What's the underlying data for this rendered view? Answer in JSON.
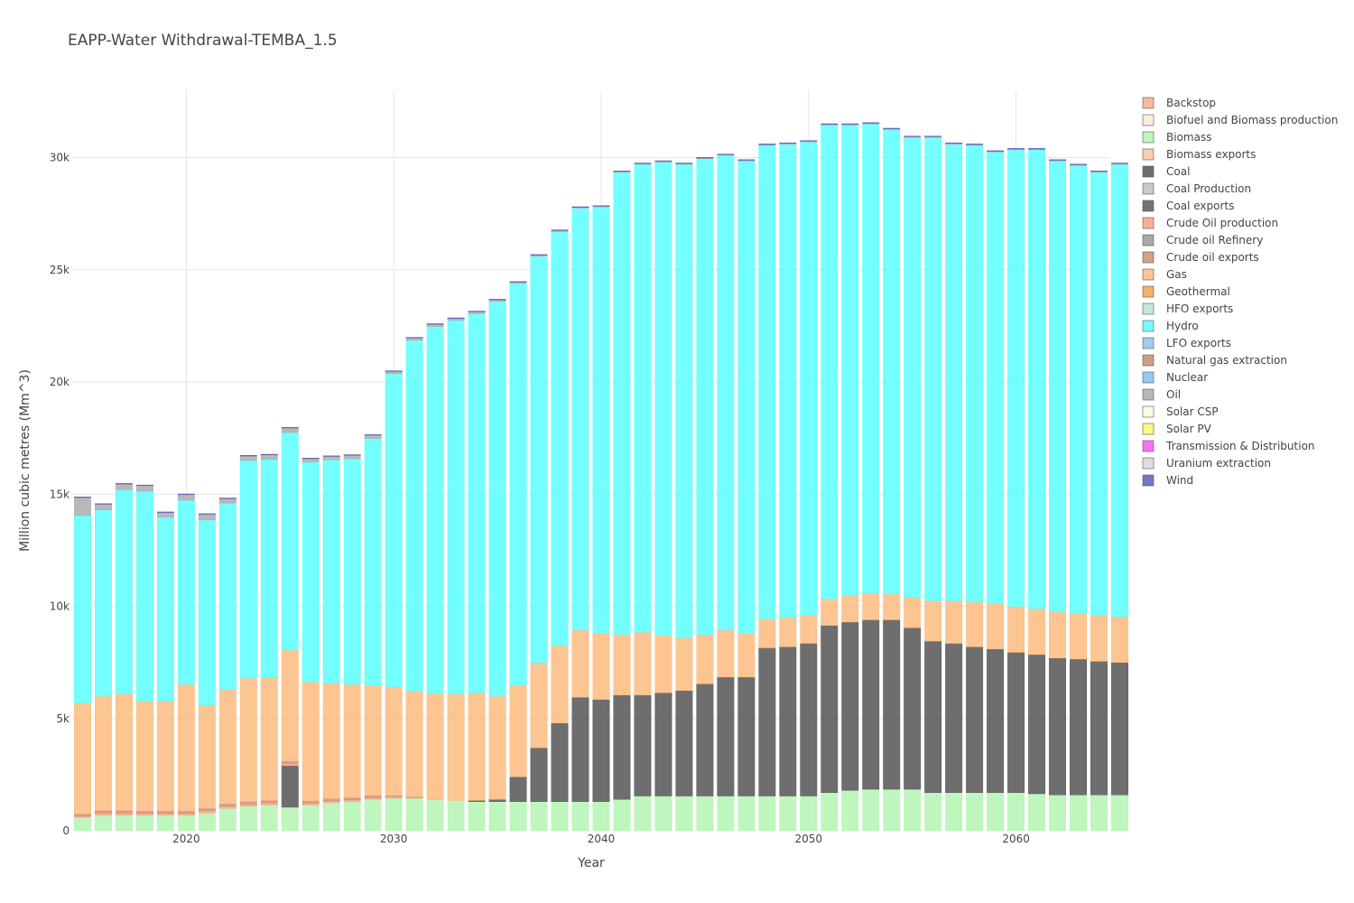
{
  "chart_data": {
    "type": "bar",
    "stacked": true,
    "title": "EAPP-Water Withdrawal-TEMBA_1.5",
    "xlabel": "Year",
    "ylabel": "Million cubic metres (Mm^3)",
    "xlim": [
      2014.5,
      2064.5
    ],
    "ylim": [
      0,
      33000
    ],
    "x_ticks": [
      2020,
      2030,
      2040,
      2050,
      2060
    ],
    "y_ticks": [
      {
        "value": 0,
        "label": "0"
      },
      {
        "value": 5000,
        "label": "5k"
      },
      {
        "value": 10000,
        "label": "10k"
      },
      {
        "value": 15000,
        "label": "15k"
      },
      {
        "value": 20000,
        "label": "20k"
      },
      {
        "value": 25000,
        "label": "25k"
      },
      {
        "value": 30000,
        "label": "30k"
      }
    ],
    "grid": true,
    "legend_position": "right",
    "x": [
      2015,
      2016,
      2017,
      2018,
      2019,
      2020,
      2021,
      2022,
      2023,
      2024,
      2025,
      2026,
      2027,
      2028,
      2029,
      2030,
      2031,
      2032,
      2033,
      2034,
      2035,
      2036,
      2037,
      2038,
      2039,
      2040,
      2041,
      2042,
      2043,
      2044,
      2045,
      2046,
      2047,
      2048,
      2049,
      2050,
      2051,
      2052,
      2053,
      2054,
      2055,
      2056,
      2057,
      2058,
      2059,
      2060,
      2061,
      2062,
      2063,
      2064,
      2065
    ],
    "series": [
      {
        "name": "Backstop",
        "color": "#fdab8a",
        "values": [
          0,
          0,
          0,
          0,
          0,
          0,
          0,
          0,
          0,
          0,
          0,
          0,
          0,
          0,
          0,
          0,
          0,
          0,
          0,
          0,
          0,
          0,
          0,
          0,
          0,
          0,
          0,
          0,
          0,
          0,
          0,
          0,
          0,
          0,
          0,
          0,
          0,
          0,
          0,
          0,
          0,
          0,
          0,
          0,
          0,
          0,
          0,
          0,
          0,
          0,
          0
        ]
      },
      {
        "name": "Biofuel and Biomass production",
        "color": "#ffe9d1",
        "values": [
          0,
          0,
          0,
          0,
          0,
          0,
          0,
          0,
          0,
          0,
          0,
          0,
          0,
          0,
          0,
          0,
          0,
          0,
          0,
          0,
          0,
          0,
          0,
          0,
          0,
          0,
          0,
          0,
          0,
          0,
          0,
          0,
          0,
          0,
          0,
          0,
          0,
          0,
          0,
          0,
          0,
          0,
          0,
          0,
          0,
          0,
          0,
          0,
          0,
          0,
          0
        ]
      },
      {
        "name": "Biomass",
        "color": "#b3f5b1",
        "values": [
          600,
          700,
          700,
          700,
          700,
          700,
          800,
          1000,
          1100,
          1150,
          1050,
          1150,
          1250,
          1300,
          1400,
          1450,
          1450,
          1400,
          1350,
          1300,
          1300,
          1300,
          1300,
          1300,
          1300,
          1300,
          1400,
          1550,
          1550,
          1550,
          1550,
          1550,
          1550,
          1550,
          1550,
          1550,
          1700,
          1800,
          1850,
          1850,
          1850,
          1700,
          1700,
          1700,
          1700,
          1700,
          1650,
          1600,
          1600,
          1600,
          1600
        ]
      },
      {
        "name": "Biomass exports",
        "color": "#fcc4a5",
        "values": [
          0,
          0,
          0,
          0,
          0,
          0,
          0,
          0,
          0,
          0,
          0,
          0,
          0,
          0,
          0,
          0,
          0,
          0,
          0,
          0,
          0,
          0,
          0,
          0,
          0,
          0,
          0,
          0,
          0,
          0,
          0,
          0,
          0,
          0,
          0,
          0,
          0,
          0,
          0,
          0,
          0,
          0,
          0,
          0,
          0,
          0,
          0,
          0,
          0,
          0,
          0
        ]
      },
      {
        "name": "Coal",
        "color": "#555555",
        "values": [
          0,
          0,
          0,
          0,
          0,
          0,
          0,
          0,
          0,
          0,
          1850,
          0,
          0,
          0,
          0,
          0,
          0,
          0,
          0,
          50,
          100,
          1100,
          2400,
          3500,
          4650,
          4550,
          4650,
          4500,
          4600,
          4700,
          5000,
          5300,
          5300,
          6600,
          6650,
          6800,
          7450,
          7500,
          7550,
          7550,
          7200,
          6750,
          6650,
          6500,
          6400,
          6250,
          6200,
          6100,
          6050,
          5950,
          5900
        ]
      },
      {
        "name": "Coal Production",
        "color": "#c1c1c1",
        "values": [
          0,
          0,
          0,
          0,
          0,
          0,
          0,
          0,
          0,
          0,
          0,
          0,
          0,
          0,
          0,
          0,
          0,
          0,
          0,
          0,
          0,
          0,
          0,
          0,
          0,
          0,
          0,
          0,
          0,
          0,
          0,
          0,
          0,
          0,
          0,
          0,
          0,
          0,
          0,
          0,
          0,
          0,
          0,
          0,
          0,
          0,
          0,
          0,
          0,
          0,
          0
        ]
      },
      {
        "name": "Coal exports",
        "color": "#5a5a5a",
        "values": [
          0,
          0,
          0,
          0,
          0,
          0,
          0,
          0,
          0,
          0,
          0,
          0,
          0,
          0,
          0,
          0,
          0,
          0,
          0,
          0,
          0,
          0,
          0,
          0,
          0,
          0,
          0,
          0,
          0,
          0,
          0,
          0,
          0,
          0,
          0,
          0,
          0,
          0,
          0,
          0,
          0,
          0,
          0,
          0,
          0,
          0,
          0,
          0,
          0,
          0,
          0
        ]
      },
      {
        "name": "Crude Oil production",
        "color": "#fba083",
        "values": [
          50,
          100,
          100,
          80,
          80,
          80,
          100,
          100,
          100,
          100,
          100,
          80,
          80,
          80,
          80,
          70,
          30,
          20,
          0,
          0,
          0,
          0,
          0,
          0,
          0,
          0,
          0,
          0,
          0,
          0,
          0,
          0,
          0,
          0,
          0,
          0,
          0,
          0,
          0,
          0,
          0,
          0,
          0,
          0,
          0,
          0,
          0,
          0,
          0,
          0,
          0
        ]
      },
      {
        "name": "Crude oil Refinery",
        "color": "#9a9a9a",
        "values": [
          0,
          0,
          0,
          0,
          0,
          0,
          0,
          0,
          0,
          0,
          0,
          0,
          0,
          0,
          0,
          0,
          0,
          0,
          0,
          0,
          0,
          0,
          0,
          0,
          0,
          0,
          0,
          0,
          0,
          0,
          0,
          0,
          0,
          0,
          0,
          0,
          0,
          0,
          0,
          0,
          0,
          0,
          0,
          0,
          0,
          0,
          0,
          0,
          0,
          0,
          0
        ]
      },
      {
        "name": "Crude oil exports",
        "color": "#c99175",
        "values": [
          100,
          100,
          100,
          100,
          100,
          100,
          100,
          100,
          100,
          100,
          100,
          100,
          100,
          100,
          100,
          50,
          30,
          0,
          0,
          0,
          0,
          0,
          0,
          0,
          0,
          0,
          0,
          0,
          0,
          0,
          0,
          0,
          0,
          0,
          0,
          0,
          0,
          0,
          0,
          0,
          0,
          0,
          0,
          0,
          0,
          0,
          0,
          0,
          0,
          0,
          0
        ]
      },
      {
        "name": "Gas",
        "color": "#fdbb7f",
        "values": [
          4950,
          5100,
          5200,
          4900,
          4900,
          5650,
          4600,
          5100,
          5500,
          5500,
          4950,
          5300,
          5150,
          5050,
          4900,
          4850,
          4700,
          4700,
          4750,
          4800,
          4600,
          4100,
          3800,
          3450,
          3000,
          2950,
          2700,
          2800,
          2550,
          2350,
          2200,
          2100,
          1950,
          1300,
          1300,
          1250,
          1200,
          1200,
          1200,
          1150,
          1350,
          1800,
          1900,
          2000,
          2050,
          2050,
          2050,
          2050,
          2050,
          2050,
          2050
        ]
      },
      {
        "name": "Geothermal",
        "color": "#f5a04e",
        "values": [
          0,
          0,
          0,
          0,
          0,
          0,
          0,
          0,
          0,
          0,
          0,
          0,
          0,
          0,
          0,
          0,
          0,
          0,
          0,
          0,
          0,
          0,
          0,
          0,
          0,
          0,
          0,
          0,
          0,
          0,
          0,
          0,
          0,
          0,
          0,
          0,
          0,
          0,
          0,
          0,
          0,
          0,
          0,
          0,
          0,
          0,
          0,
          0,
          0,
          0,
          0
        ]
      },
      {
        "name": "HFO exports",
        "color": "#b7e3d8",
        "values": [
          0,
          0,
          0,
          0,
          0,
          0,
          0,
          0,
          0,
          0,
          0,
          0,
          0,
          0,
          0,
          0,
          0,
          0,
          0,
          0,
          0,
          0,
          0,
          0,
          0,
          0,
          0,
          0,
          0,
          0,
          0,
          0,
          0,
          0,
          0,
          0,
          0,
          0,
          0,
          0,
          0,
          0,
          0,
          0,
          0,
          0,
          0,
          0,
          0,
          0,
          0
        ]
      },
      {
        "name": "Hydro",
        "color": "#5cffff",
        "values": [
          8350,
          8300,
          9100,
          9350,
          8200,
          8200,
          8250,
          8300,
          9700,
          9700,
          9700,
          9800,
          9950,
          10050,
          11000,
          13950,
          15650,
          16350,
          16650,
          16900,
          17600,
          17900,
          18100,
          18450,
          18800,
          19000,
          20600,
          20850,
          21100,
          21100,
          21200,
          21150,
          21050,
          21100,
          21100,
          21100,
          21100,
          20950,
          20900,
          20700,
          20500,
          20650,
          20350,
          20350,
          20100,
          20350,
          20450,
          20100,
          19950,
          19750,
          20150
        ]
      },
      {
        "name": "LFO exports",
        "color": "#93c1ee",
        "values": [
          0,
          0,
          0,
          0,
          0,
          0,
          0,
          0,
          0,
          0,
          0,
          0,
          0,
          0,
          0,
          0,
          0,
          0,
          0,
          0,
          0,
          0,
          0,
          0,
          0,
          0,
          0,
          0,
          0,
          0,
          0,
          0,
          0,
          0,
          0,
          0,
          0,
          0,
          0,
          0,
          0,
          0,
          0,
          0,
          0,
          0,
          0,
          0,
          0,
          0,
          0
        ]
      },
      {
        "name": "Natural gas extraction",
        "color": "#c88d70",
        "values": [
          0,
          0,
          0,
          0,
          0,
          0,
          0,
          0,
          0,
          0,
          0,
          0,
          0,
          0,
          0,
          0,
          0,
          0,
          0,
          0,
          0,
          0,
          0,
          0,
          0,
          0,
          0,
          0,
          0,
          0,
          0,
          0,
          0,
          0,
          0,
          0,
          0,
          0,
          0,
          0,
          0,
          0,
          0,
          0,
          0,
          0,
          0,
          0,
          0,
          0,
          0
        ]
      },
      {
        "name": "Nuclear",
        "color": "#83bff3",
        "values": [
          0,
          0,
          0,
          0,
          0,
          0,
          0,
          0,
          0,
          0,
          0,
          0,
          0,
          0,
          0,
          0,
          0,
          0,
          0,
          0,
          0,
          0,
          0,
          0,
          0,
          0,
          0,
          0,
          0,
          0,
          0,
          0,
          0,
          0,
          0,
          0,
          0,
          0,
          0,
          0,
          0,
          0,
          0,
          0,
          0,
          0,
          0,
          0,
          0,
          0,
          0
        ]
      },
      {
        "name": "Oil",
        "color": "#acacac",
        "values": [
          800,
          250,
          250,
          250,
          200,
          250,
          250,
          200,
          200,
          200,
          200,
          150,
          150,
          150,
          150,
          100,
          100,
          100,
          80,
          80,
          60,
          50,
          50,
          50,
          30,
          30,
          30,
          30,
          30,
          30,
          30,
          30,
          30,
          30,
          30,
          30,
          30,
          30,
          30,
          30,
          30,
          30,
          30,
          30,
          30,
          30,
          30,
          30,
          30,
          30,
          30
        ]
      },
      {
        "name": "Solar CSP",
        "color": "#fbfbde",
        "values": [
          0,
          0,
          0,
          0,
          0,
          0,
          0,
          0,
          0,
          0,
          0,
          0,
          0,
          0,
          0,
          0,
          0,
          0,
          0,
          0,
          0,
          0,
          0,
          0,
          0,
          0,
          0,
          0,
          0,
          0,
          0,
          0,
          0,
          0,
          0,
          0,
          0,
          0,
          0,
          0,
          0,
          0,
          0,
          0,
          0,
          0,
          0,
          0,
          0,
          0,
          0
        ]
      },
      {
        "name": "Solar PV",
        "color": "#f8fa6a",
        "values": [
          0,
          0,
          0,
          0,
          0,
          0,
          0,
          0,
          0,
          0,
          0,
          0,
          0,
          0,
          0,
          0,
          0,
          0,
          0,
          0,
          0,
          0,
          0,
          0,
          0,
          0,
          0,
          0,
          0,
          0,
          0,
          0,
          0,
          0,
          0,
          0,
          0,
          0,
          0,
          0,
          0,
          0,
          0,
          0,
          0,
          0,
          0,
          0,
          0,
          0,
          0
        ]
      },
      {
        "name": "Transmission & Distribution",
        "color": "#ff55ff",
        "values": [
          0,
          0,
          0,
          0,
          0,
          0,
          0,
          0,
          0,
          0,
          0,
          0,
          0,
          0,
          0,
          0,
          0,
          0,
          0,
          0,
          0,
          0,
          0,
          0,
          0,
          0,
          0,
          0,
          0,
          0,
          0,
          0,
          0,
          0,
          0,
          0,
          0,
          0,
          0,
          0,
          0,
          0,
          0,
          0,
          0,
          0,
          0,
          0,
          0,
          0,
          0
        ]
      },
      {
        "name": "Uranium extraction",
        "color": "#d8d8d8",
        "values": [
          0,
          0,
          0,
          0,
          0,
          0,
          0,
          0,
          0,
          0,
          0,
          0,
          0,
          0,
          0,
          0,
          0,
          0,
          0,
          0,
          0,
          0,
          0,
          0,
          0,
          0,
          0,
          0,
          0,
          0,
          0,
          0,
          0,
          0,
          0,
          0,
          0,
          0,
          0,
          0,
          0,
          0,
          0,
          0,
          0,
          0,
          0,
          0,
          0,
          0,
          0
        ]
      },
      {
        "name": "Wind",
        "color": "#5c60b6",
        "values": [
          30,
          30,
          30,
          30,
          30,
          30,
          30,
          30,
          30,
          30,
          30,
          30,
          30,
          30,
          30,
          30,
          30,
          30,
          30,
          30,
          30,
          30,
          30,
          30,
          30,
          30,
          30,
          30,
          30,
          30,
          30,
          30,
          30,
          30,
          30,
          30,
          30,
          30,
          30,
          30,
          30,
          30,
          30,
          30,
          30,
          30,
          30,
          30,
          30,
          30,
          30
        ]
      }
    ]
  }
}
